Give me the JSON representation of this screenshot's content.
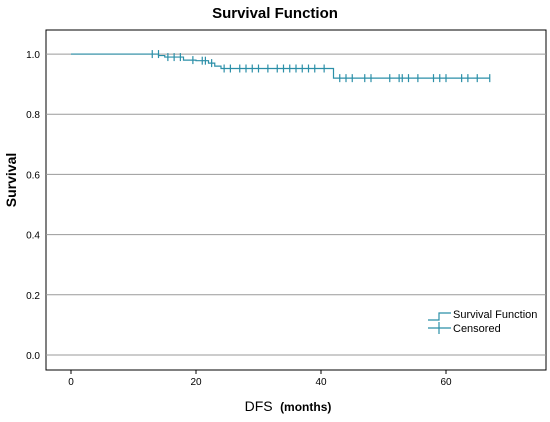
{
  "chart_data": {
    "type": "line",
    "title": "Survival Function",
    "xlabel": "DFS",
    "xlabel_unit": "(months)",
    "ylabel": "Survival",
    "xlim": [
      -4,
      76
    ],
    "ylim": [
      -0.05,
      1.08
    ],
    "x_ticks": [
      0,
      20,
      40,
      60
    ],
    "x_tick_labels": [
      "0",
      "20",
      "40",
      "60"
    ],
    "y_ticks": [
      0.0,
      0.2,
      0.4,
      0.6,
      0.8,
      1.0
    ],
    "y_tick_labels": [
      "0.0",
      "0.2",
      "0.4",
      "0.6",
      "0.8",
      "1.0"
    ],
    "grid": "horizontal",
    "legend_position": "bottom-right",
    "series": [
      {
        "name": "Survival Function",
        "kind": "step",
        "color": "#2b8fa8",
        "points": [
          [
            0,
            1.0
          ],
          [
            14,
            1.0
          ],
          [
            14,
            0.995
          ],
          [
            15,
            0.995
          ],
          [
            15,
            0.99
          ],
          [
            18,
            0.99
          ],
          [
            18,
            0.98
          ],
          [
            20,
            0.98
          ],
          [
            20,
            0.978
          ],
          [
            22,
            0.978
          ],
          [
            22,
            0.97
          ],
          [
            23,
            0.97
          ],
          [
            23,
            0.96
          ],
          [
            24,
            0.96
          ],
          [
            24,
            0.952
          ],
          [
            42,
            0.952
          ],
          [
            42,
            0.92
          ],
          [
            67,
            0.92
          ]
        ]
      },
      {
        "name": "Censored",
        "kind": "marker",
        "color": "#2b8fa8",
        "points": [
          [
            13,
            1.0
          ],
          [
            14,
            1.0
          ],
          [
            15.5,
            0.99
          ],
          [
            16.5,
            0.99
          ],
          [
            17.5,
            0.99
          ],
          [
            19.5,
            0.98
          ],
          [
            21,
            0.978
          ],
          [
            21.5,
            0.978
          ],
          [
            22.5,
            0.97
          ],
          [
            24.5,
            0.952
          ],
          [
            25.5,
            0.952
          ],
          [
            27,
            0.952
          ],
          [
            28,
            0.952
          ],
          [
            29,
            0.952
          ],
          [
            30,
            0.952
          ],
          [
            31.5,
            0.952
          ],
          [
            33,
            0.952
          ],
          [
            34,
            0.952
          ],
          [
            35,
            0.952
          ],
          [
            36,
            0.952
          ],
          [
            37,
            0.952
          ],
          [
            38,
            0.952
          ],
          [
            39,
            0.952
          ],
          [
            40.5,
            0.952
          ],
          [
            43,
            0.92
          ],
          [
            44,
            0.92
          ],
          [
            45,
            0.92
          ],
          [
            47,
            0.92
          ],
          [
            48,
            0.92
          ],
          [
            51,
            0.92
          ],
          [
            52.5,
            0.92
          ],
          [
            53,
            0.92
          ],
          [
            54,
            0.92
          ],
          [
            55.5,
            0.92
          ],
          [
            58,
            0.92
          ],
          [
            59,
            0.92
          ],
          [
            60,
            0.92
          ],
          [
            62.5,
            0.92
          ],
          [
            63.5,
            0.92
          ],
          [
            65,
            0.92
          ],
          [
            67,
            0.92
          ]
        ]
      }
    ]
  }
}
